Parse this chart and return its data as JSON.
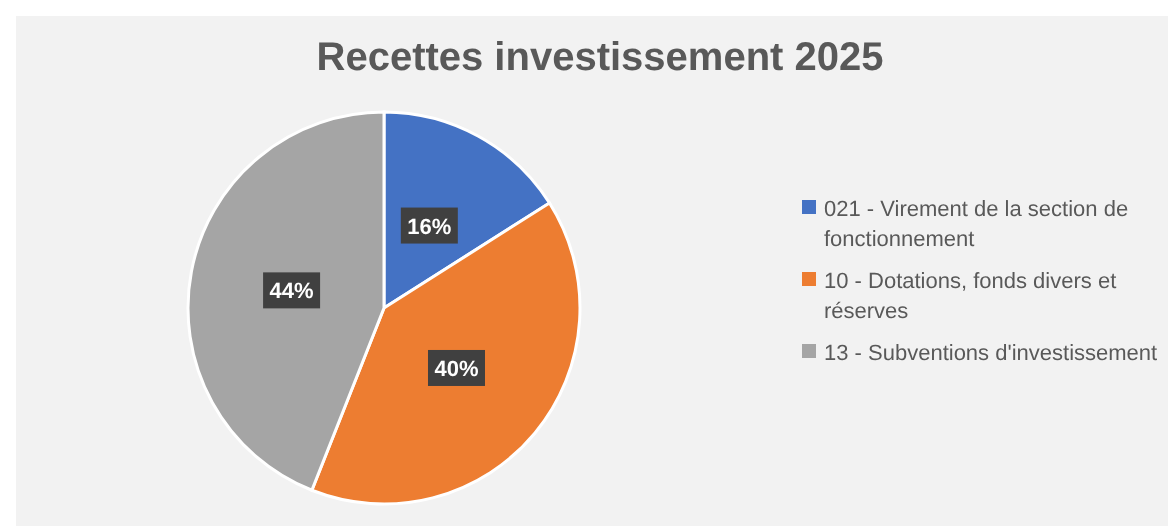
{
  "chart_data": {
    "type": "pie",
    "title": "Recettes investissement 2025",
    "categories": [
      "021 - Virement de la section de fonctionnement",
      "10 - Dotations, fonds divers et réserves",
      "13 - Subventions d'investissement"
    ],
    "values": [
      16,
      40,
      44
    ],
    "colors": [
      "#4472c4",
      "#ed7d31",
      "#a5a5a5"
    ],
    "value_labels": [
      "16%",
      "40%",
      "44%"
    ],
    "legend": "right"
  }
}
